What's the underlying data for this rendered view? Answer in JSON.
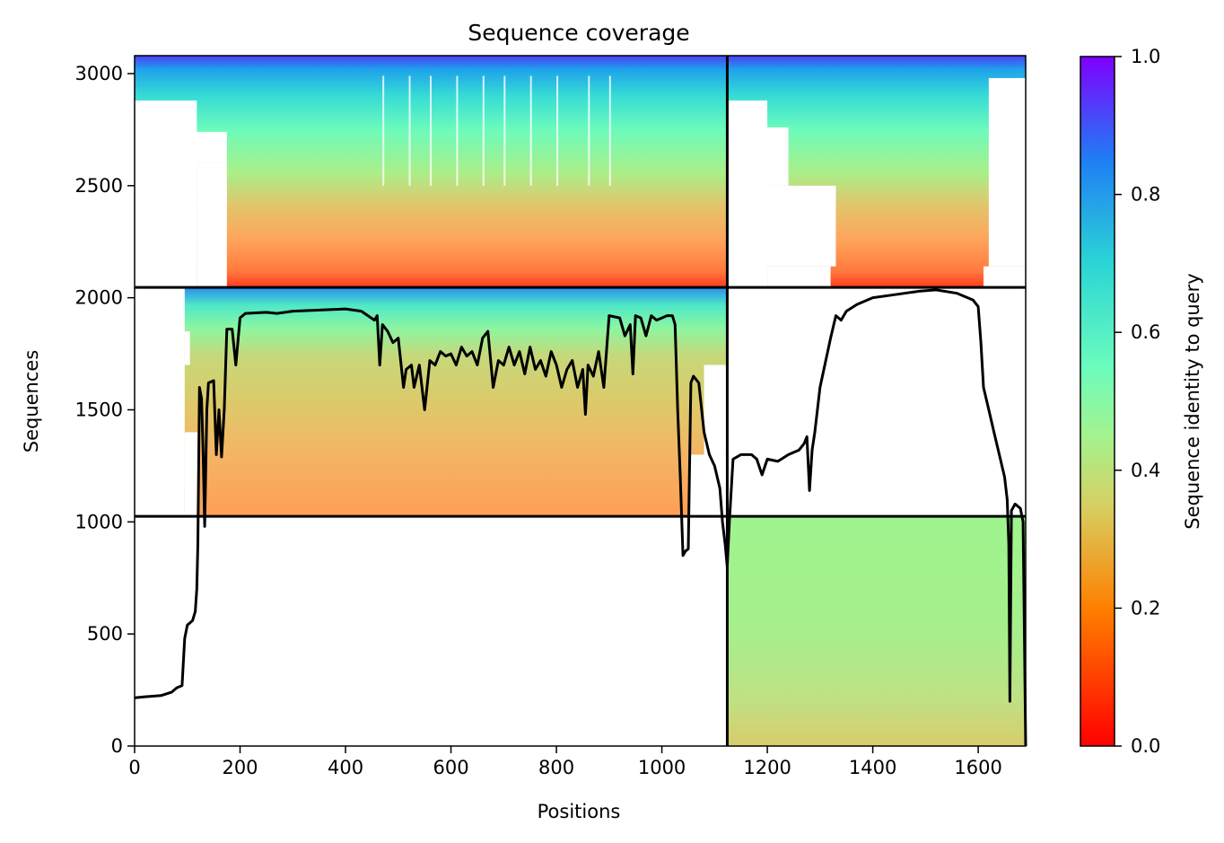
{
  "chart_data": {
    "type": "heatmap",
    "title": "Sequence coverage",
    "xlabel": "Positions",
    "ylabel": "Sequences",
    "xlim": [
      0,
      1690
    ],
    "ylim": [
      0,
      3080
    ],
    "xticks": [
      0,
      200,
      400,
      600,
      800,
      1000,
      1200,
      1400,
      1600
    ],
    "yticks": [
      0,
      500,
      1000,
      1500,
      2000,
      2500,
      3000
    ],
    "grid": false,
    "colorbar": {
      "label": "Sequence identity to query",
      "range": [
        0.0,
        1.0
      ],
      "ticks": [
        "0.0",
        "0.2",
        "0.4",
        "0.6",
        "0.8",
        "1.0"
      ],
      "colormap": "rainbow_r",
      "stops": [
        "#ff0000",
        "#ff8000",
        "#d6d063",
        "#80ff80",
        "#2bd5d5",
        "#1f7ef4",
        "#7f00ff"
      ]
    },
    "chain_boundaries": {
      "positions": [
        1124
      ],
      "sequences": [
        1025,
        2046
      ]
    },
    "msa_blocks": [
      {
        "name": "paired-both",
        "x": [
          0,
          1690
        ],
        "y": [
          2046,
          3080
        ],
        "identity_bottom": 0.15,
        "identity_top": 1.0
      },
      {
        "name": "chain-A-only",
        "x": [
          0,
          1124
        ],
        "y": [
          1025,
          2046
        ],
        "identity_bottom": 0.22,
        "identity_top": 0.95
      },
      {
        "name": "chain-B-only",
        "x": [
          1124,
          1690
        ],
        "y": [
          0,
          1025
        ],
        "identity_bottom": 0.33,
        "identity_top": 0.45
      }
    ],
    "series": [
      {
        "type": "line",
        "color": "#000000",
        "points": [
          [
            0,
            215
          ],
          [
            20,
            220
          ],
          [
            50,
            225
          ],
          [
            70,
            240
          ],
          [
            80,
            260
          ],
          [
            90,
            270
          ],
          [
            95,
            480
          ],
          [
            100,
            540
          ],
          [
            110,
            560
          ],
          [
            115,
            600
          ],
          [
            118,
            700
          ],
          [
            120,
            900
          ],
          [
            123,
            1600
          ],
          [
            127,
            1550
          ],
          [
            130,
            1300
          ],
          [
            133,
            980
          ],
          [
            137,
            1500
          ],
          [
            140,
            1620
          ],
          [
            150,
            1630
          ],
          [
            155,
            1300
          ],
          [
            160,
            1500
          ],
          [
            165,
            1290
          ],
          [
            170,
            1500
          ],
          [
            175,
            1860
          ],
          [
            185,
            1860
          ],
          [
            192,
            1700
          ],
          [
            200,
            1910
          ],
          [
            210,
            1930
          ],
          [
            250,
            1935
          ],
          [
            270,
            1930
          ],
          [
            300,
            1940
          ],
          [
            350,
            1945
          ],
          [
            400,
            1950
          ],
          [
            430,
            1940
          ],
          [
            455,
            1900
          ],
          [
            460,
            1920
          ],
          [
            465,
            1700
          ],
          [
            470,
            1880
          ],
          [
            480,
            1850
          ],
          [
            490,
            1800
          ],
          [
            500,
            1820
          ],
          [
            510,
            1600
          ],
          [
            515,
            1680
          ],
          [
            525,
            1700
          ],
          [
            530,
            1600
          ],
          [
            540,
            1700
          ],
          [
            550,
            1500
          ],
          [
            560,
            1720
          ],
          [
            570,
            1700
          ],
          [
            580,
            1760
          ],
          [
            590,
            1740
          ],
          [
            600,
            1750
          ],
          [
            610,
            1700
          ],
          [
            620,
            1780
          ],
          [
            630,
            1740
          ],
          [
            640,
            1760
          ],
          [
            650,
            1700
          ],
          [
            660,
            1820
          ],
          [
            670,
            1850
          ],
          [
            680,
            1600
          ],
          [
            690,
            1720
          ],
          [
            700,
            1700
          ],
          [
            710,
            1780
          ],
          [
            720,
            1700
          ],
          [
            730,
            1760
          ],
          [
            740,
            1660
          ],
          [
            750,
            1780
          ],
          [
            760,
            1680
          ],
          [
            770,
            1720
          ],
          [
            780,
            1650
          ],
          [
            790,
            1760
          ],
          [
            800,
            1700
          ],
          [
            810,
            1600
          ],
          [
            820,
            1680
          ],
          [
            830,
            1720
          ],
          [
            840,
            1600
          ],
          [
            850,
            1680
          ],
          [
            855,
            1480
          ],
          [
            860,
            1700
          ],
          [
            870,
            1650
          ],
          [
            880,
            1760
          ],
          [
            890,
            1600
          ],
          [
            900,
            1920
          ],
          [
            920,
            1910
          ],
          [
            930,
            1830
          ],
          [
            940,
            1880
          ],
          [
            945,
            1660
          ],
          [
            950,
            1920
          ],
          [
            960,
            1910
          ],
          [
            970,
            1830
          ],
          [
            980,
            1920
          ],
          [
            990,
            1900
          ],
          [
            1000,
            1910
          ],
          [
            1010,
            1920
          ],
          [
            1020,
            1920
          ],
          [
            1025,
            1880
          ],
          [
            1030,
            1500
          ],
          [
            1035,
            1200
          ],
          [
            1040,
            850
          ],
          [
            1045,
            870
          ],
          [
            1050,
            880
          ],
          [
            1055,
            1620
          ],
          [
            1060,
            1650
          ],
          [
            1070,
            1620
          ],
          [
            1080,
            1400
          ],
          [
            1090,
            1300
          ],
          [
            1100,
            1250
          ],
          [
            1110,
            1150
          ],
          [
            1115,
            1000
          ],
          [
            1120,
            900
          ],
          [
            1124,
            800
          ],
          [
            1128,
            1000
          ],
          [
            1135,
            1280
          ],
          [
            1150,
            1300
          ],
          [
            1170,
            1300
          ],
          [
            1180,
            1280
          ],
          [
            1190,
            1210
          ],
          [
            1200,
            1280
          ],
          [
            1220,
            1270
          ],
          [
            1240,
            1300
          ],
          [
            1260,
            1320
          ],
          [
            1270,
            1350
          ],
          [
            1275,
            1380
          ],
          [
            1280,
            1140
          ],
          [
            1285,
            1320
          ],
          [
            1290,
            1400
          ],
          [
            1300,
            1600
          ],
          [
            1320,
            1820
          ],
          [
            1330,
            1920
          ],
          [
            1340,
            1900
          ],
          [
            1350,
            1940
          ],
          [
            1370,
            1970
          ],
          [
            1400,
            2000
          ],
          [
            1430,
            2010
          ],
          [
            1460,
            2020
          ],
          [
            1490,
            2030
          ],
          [
            1520,
            2035
          ],
          [
            1560,
            2020
          ],
          [
            1590,
            1990
          ],
          [
            1600,
            1960
          ],
          [
            1605,
            1800
          ],
          [
            1610,
            1600
          ],
          [
            1620,
            1500
          ],
          [
            1630,
            1400
          ],
          [
            1640,
            1300
          ],
          [
            1650,
            1200
          ],
          [
            1655,
            1100
          ],
          [
            1658,
            900
          ],
          [
            1660,
            200
          ],
          [
            1663,
            1050
          ],
          [
            1670,
            1080
          ],
          [
            1680,
            1060
          ],
          [
            1685,
            1000
          ],
          [
            1690,
            0
          ]
        ]
      }
    ]
  }
}
